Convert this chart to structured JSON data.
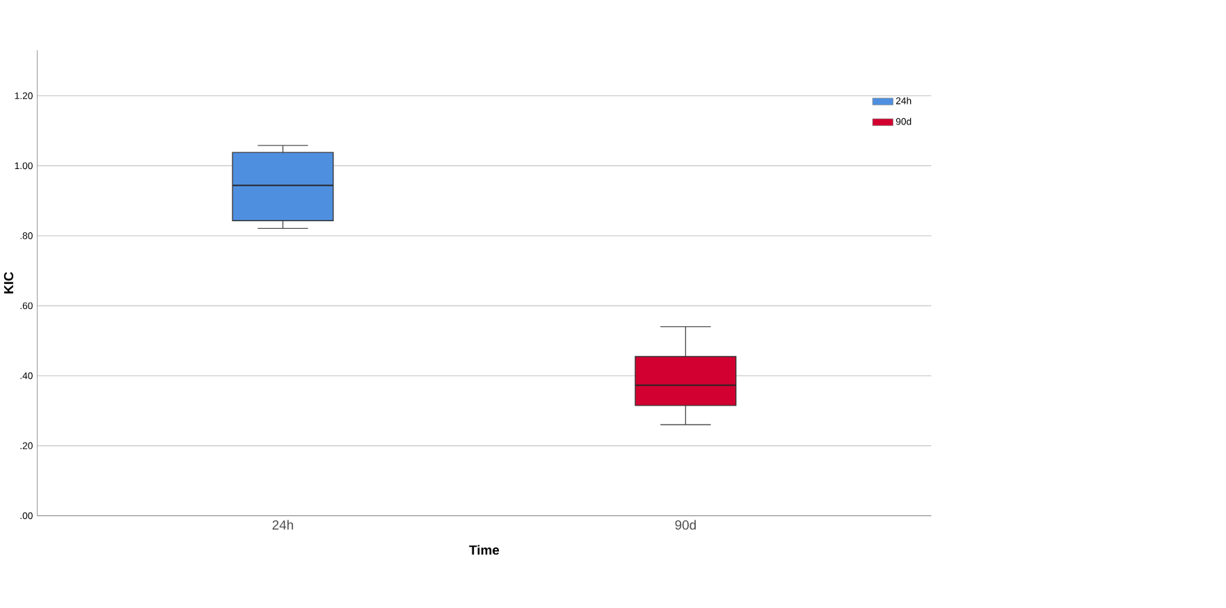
{
  "chart_data": {
    "type": "box",
    "xlabel": "Time",
    "ylabel": "KIC",
    "categories": [
      "24h",
      "90d"
    ],
    "series": [
      {
        "name": "24h",
        "color": "#4f8fe0",
        "boxes": [
          {
            "low": 0.821,
            "q1": 0.843,
            "median": 0.944,
            "q3": 1.038,
            "high": 1.058
          },
          null
        ]
      },
      {
        "name": "90d",
        "color": "#d20030",
        "boxes": [
          null,
          {
            "low": 0.26,
            "q1": 0.315,
            "median": 0.373,
            "q3": 0.455,
            "high": 0.54
          }
        ]
      }
    ],
    "ylim": [
      0,
      1.33
    ],
    "yticks": [
      {
        "value": 0,
        "label": ".00"
      },
      {
        "value": 0.2,
        "label": ".20"
      },
      {
        "value": 0.4,
        "label": ".40"
      },
      {
        "value": 0.6,
        "label": ".60"
      },
      {
        "value": 0.8,
        "label": ".80"
      },
      {
        "value": 1.0,
        "label": "1.00"
      },
      {
        "value": 1.2,
        "label": "1.20"
      }
    ],
    "grid": "y",
    "legend": "top right"
  }
}
